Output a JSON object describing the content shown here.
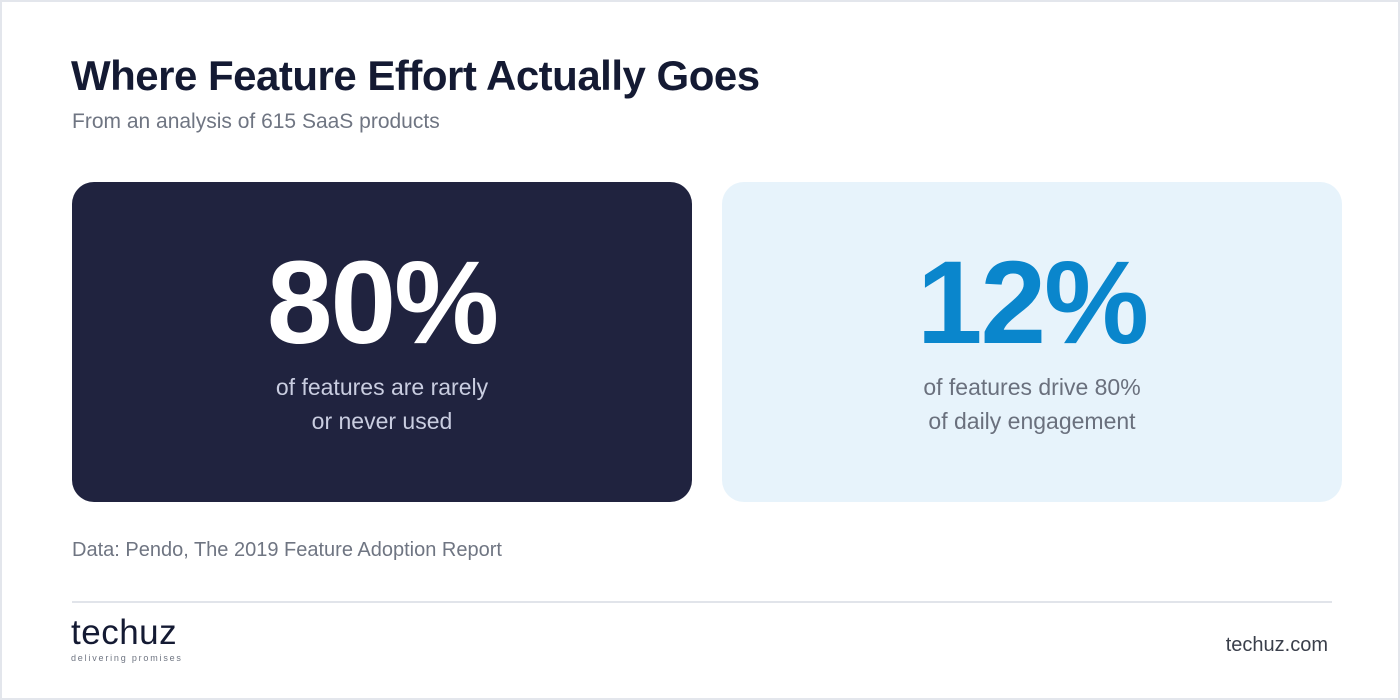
{
  "header": {
    "title": "Where Feature Effort Actually Goes",
    "subtitle": "From an analysis of 615 SaaS products"
  },
  "stats": [
    {
      "value": "80%",
      "fraction": 0.8,
      "description_lines": [
        "of features are rarely",
        "or never used"
      ],
      "background_color": "#20233f",
      "value_color": "#ffffff"
    },
    {
      "value": "12%",
      "fraction": 0.12,
      "description_lines": [
        "of features drive 80%",
        "of daily engagement"
      ],
      "background_color": "#e7f3fb",
      "value_color": "#0a86cc"
    }
  ],
  "source": "Data: Pendo, The 2019 Feature Adoption Report",
  "footer": {
    "logo_text": "techuz",
    "logo_tagline": "delivering promises",
    "website": "techuz.com"
  },
  "colors": {
    "title": "#141a33",
    "muted_text": "#6f7582",
    "accent_blue": "#0a86cc",
    "dark_card": "#20233f",
    "light_card": "#e7f3fb"
  }
}
